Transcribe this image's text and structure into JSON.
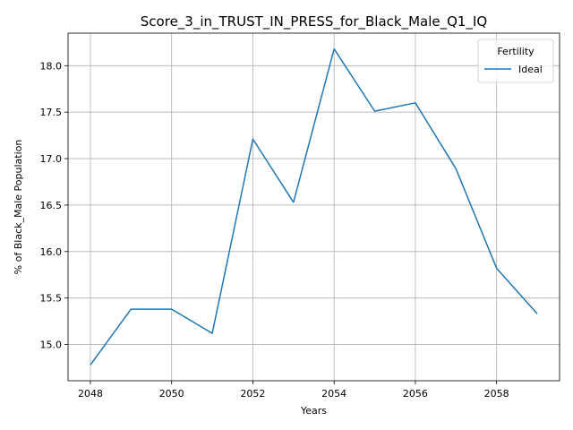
{
  "chart_data": {
    "type": "line",
    "title": "Score_3_in_TRUST_IN_PRESS_for_Black_Male_Q1_IQ",
    "xlabel": "Years",
    "ylabel": "% of Black_Male Population",
    "x": [
      2048,
      2049,
      2050,
      2051,
      2052,
      2053,
      2054,
      2055,
      2056,
      2057,
      2058,
      2059
    ],
    "series": [
      {
        "name": "Ideal",
        "color": "#1f77b4",
        "values": [
          14.78,
          15.38,
          15.38,
          15.12,
          17.21,
          16.53,
          18.18,
          17.51,
          17.6,
          16.89,
          15.82,
          15.33
        ]
      }
    ],
    "xlim": [
      2047.45,
      2059.55
    ],
    "ylim": [
      14.61,
      18.35
    ],
    "xticks": [
      2048,
      2050,
      2052,
      2054,
      2056,
      2058
    ],
    "yticks": [
      15.0,
      15.5,
      16.0,
      16.5,
      17.0,
      17.5,
      18.0
    ],
    "grid": true,
    "legend": {
      "title": "Fertility",
      "position": "top-right"
    }
  }
}
